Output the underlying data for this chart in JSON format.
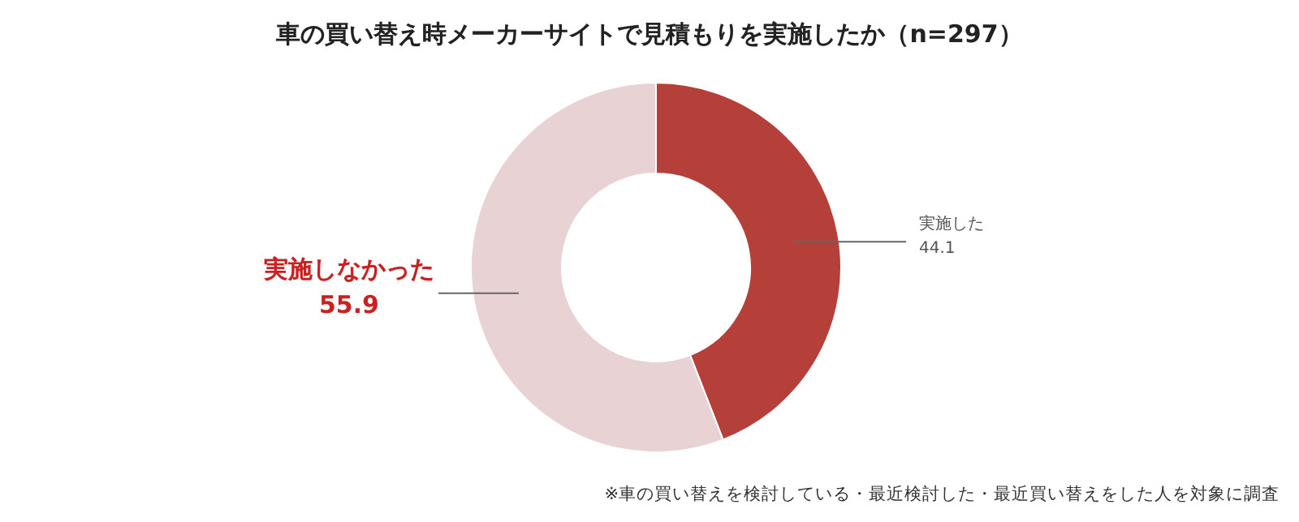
{
  "chart_data": {
    "type": "donut",
    "title": "車の買い替え時メーカーサイトで見積もりを実施したか（n=297）",
    "categories": [
      "実施した",
      "実施しなかった"
    ],
    "values": [
      44.1,
      55.9
    ],
    "colors": [
      "#b5403a",
      "#e8d2d4"
    ],
    "data_labels": true,
    "annotations": [
      "※車の買い替えを検討している・最近検討した・最近買い替えをした人を対象に調査"
    ]
  }
}
